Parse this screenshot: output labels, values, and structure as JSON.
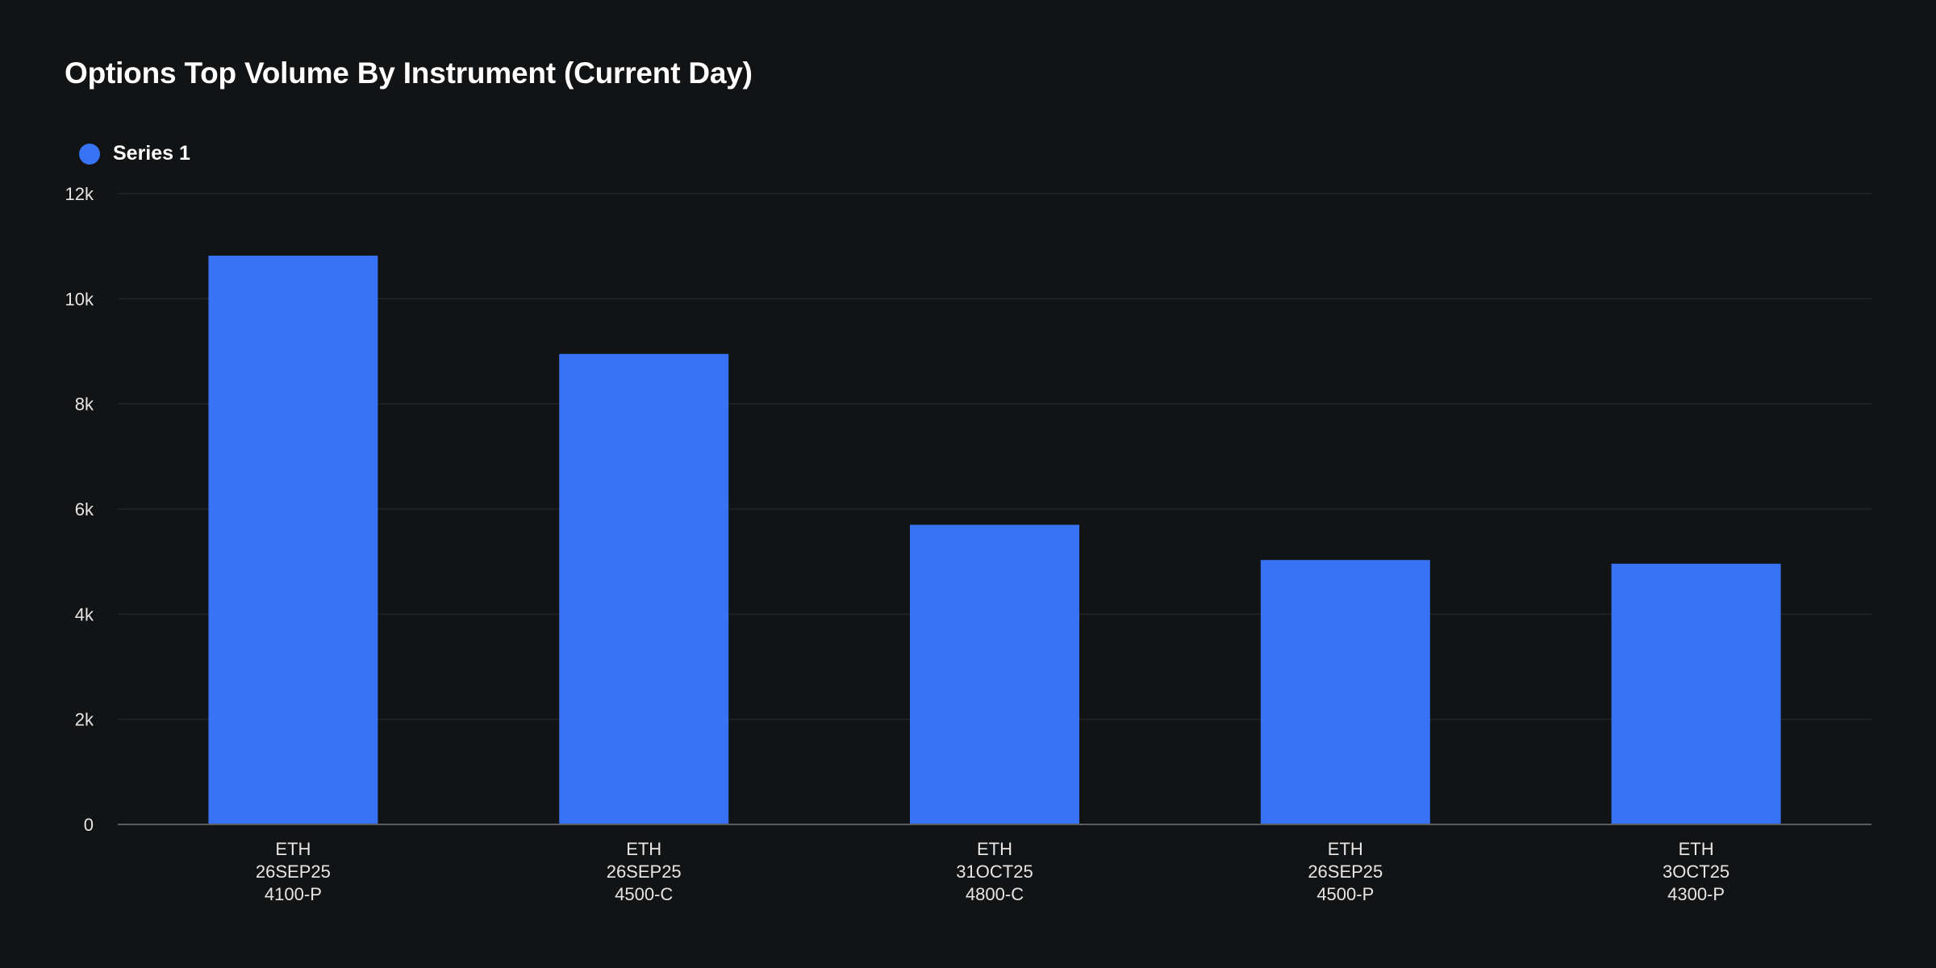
{
  "colors": {
    "background": "#121314",
    "bar": "#3773f4",
    "grid": "#222426",
    "axis": "#5a5c60",
    "text": "#e6e6e6"
  },
  "chart_data": {
    "type": "bar",
    "title": "Options Top Volume By Instrument (Current Day)",
    "xlabel": "",
    "ylabel": "",
    "ylim": [
      0,
      12000
    ],
    "yticks": [
      {
        "value": 0,
        "label": "0"
      },
      {
        "value": 2000,
        "label": "2k"
      },
      {
        "value": 4000,
        "label": "4k"
      },
      {
        "value": 6000,
        "label": "6k"
      },
      {
        "value": 8000,
        "label": "8k"
      },
      {
        "value": 10000,
        "label": "10k"
      },
      {
        "value": 12000,
        "label": "12k"
      }
    ],
    "grid": true,
    "legend_position": "top-left",
    "categories": [
      [
        "ETH",
        "26SEP25",
        "4100-P"
      ],
      [
        "ETH",
        "26SEP25",
        "4500-C"
      ],
      [
        "ETH",
        "31OCT25",
        "4800-C"
      ],
      [
        "ETH",
        "26SEP25",
        "4500-P"
      ],
      [
        "ETH",
        "3OCT25",
        "4300-P"
      ]
    ],
    "series": [
      {
        "name": "Series 1",
        "values": [
          10820,
          8950,
          5700,
          5030,
          4960
        ]
      }
    ]
  }
}
